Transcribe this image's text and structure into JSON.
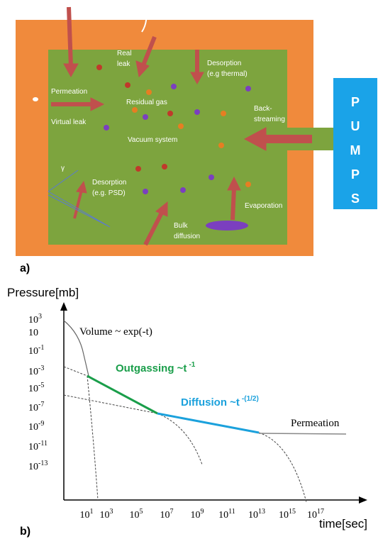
{
  "panel_a": {
    "label": "a)",
    "labels": {
      "real_leak": [
        "Real",
        "leak"
      ],
      "desorption_thermal": [
        "Desorption",
        "(e.g thermal)"
      ],
      "permeation": [
        "Permeation"
      ],
      "residual_gas": [
        "Residual gas"
      ],
      "virtual_leak": [
        "Virtual leak"
      ],
      "back_streaming": [
        "Back-",
        "streaming"
      ],
      "vacuum_system": [
        "Vacuum system"
      ],
      "gamma": [
        "γ"
      ],
      "desorption_psd": [
        "Desorption",
        "(e.g. PSD)"
      ],
      "evaporation": [
        "Evaporation"
      ],
      "bulk_diffusion": [
        "Bulk",
        "diffusion"
      ]
    },
    "pumps": [
      "P",
      "U",
      "M",
      "P",
      "S"
    ]
  },
  "panel_b": {
    "label": "b)",
    "y_axis_title": "Pressure[mb]",
    "x_axis_title": "time[sec]",
    "y_tick_labels": [
      {
        "base": "10",
        "exp": "3"
      },
      {
        "base": "10"
      },
      {
        "base": "10",
        "exp": "-1"
      },
      {
        "base": "10",
        "exp": "-3"
      },
      {
        "base": "10",
        "exp": "-5"
      },
      {
        "base": "10",
        "exp": "-7"
      },
      {
        "base": "10",
        "exp": "-9"
      },
      {
        "base": "10",
        "exp": "-11"
      },
      {
        "base": "10",
        "exp": "-13"
      }
    ],
    "x_tick_labels": [
      {
        "base": "10",
        "exp": "1"
      },
      {
        "base": "10",
        "exp": "3"
      },
      {
        "base": "10",
        "exp": "5"
      },
      {
        "base": "10",
        "exp": "7"
      },
      {
        "base": "10",
        "exp": "9"
      },
      {
        "base": "10",
        "exp": "11"
      },
      {
        "base": "10",
        "exp": "13"
      },
      {
        "base": "10",
        "exp": "15"
      },
      {
        "base": "10",
        "exp": "17"
      }
    ],
    "curve_labels": {
      "volume": "Volume ~ exp(-t)",
      "outgassing": {
        "text": "Outgassing ~t",
        "exp": "-1"
      },
      "diffusion": {
        "text": "Diffusion ~t",
        "exp": "-(1/2)"
      },
      "permeation": "Permeation"
    }
  }
}
